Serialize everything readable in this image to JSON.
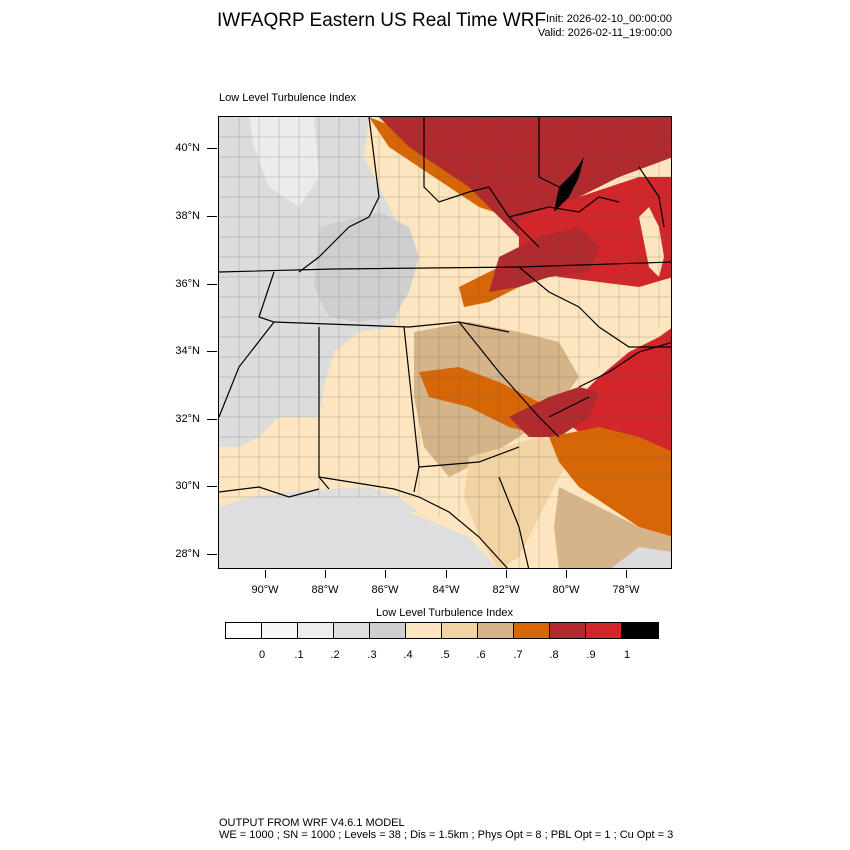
{
  "header": {
    "title": "IWFAQRP Eastern US Real Time WRF",
    "init": "Init: 2026-02-10_00:00:00",
    "valid": "Valid: 2026-02-11_19:00:00"
  },
  "panel": {
    "title": "Low Level Turbulence Index"
  },
  "axes": {
    "lat_labels": [
      "40°N",
      "38°N",
      "36°N",
      "34°N",
      "32°N",
      "30°N",
      "28°N"
    ],
    "lon_labels": [
      "90°W",
      "88°W",
      "86°W",
      "84°W",
      "82°W",
      "80°W",
      "78°W"
    ]
  },
  "legend": {
    "title": "Low Level Turbulence Index",
    "colors": [
      "#ffffff",
      "#f7f7f7",
      "#ededed",
      "#dedede",
      "#cfcfcf",
      "#fde6bf",
      "#f2d3a3",
      "#d5b489",
      "#d76706",
      "#b02a2e",
      "#d2262a",
      "#000000"
    ],
    "labels": [
      "0",
      ".1",
      ".2",
      ".3",
      ".4",
      ".5",
      ".6",
      ".7",
      ".8",
      ".9",
      "1"
    ]
  },
  "footer": {
    "line1": "OUTPUT FROM WRF V4.6.1 MODEL",
    "line2": "WE = 1000 ; SN = 1000 ; Levels = 38 ; Dis = 1.5km ; Phys Opt = 8 ; PBL Opt = 1 ; Cu Opt = 3"
  }
}
